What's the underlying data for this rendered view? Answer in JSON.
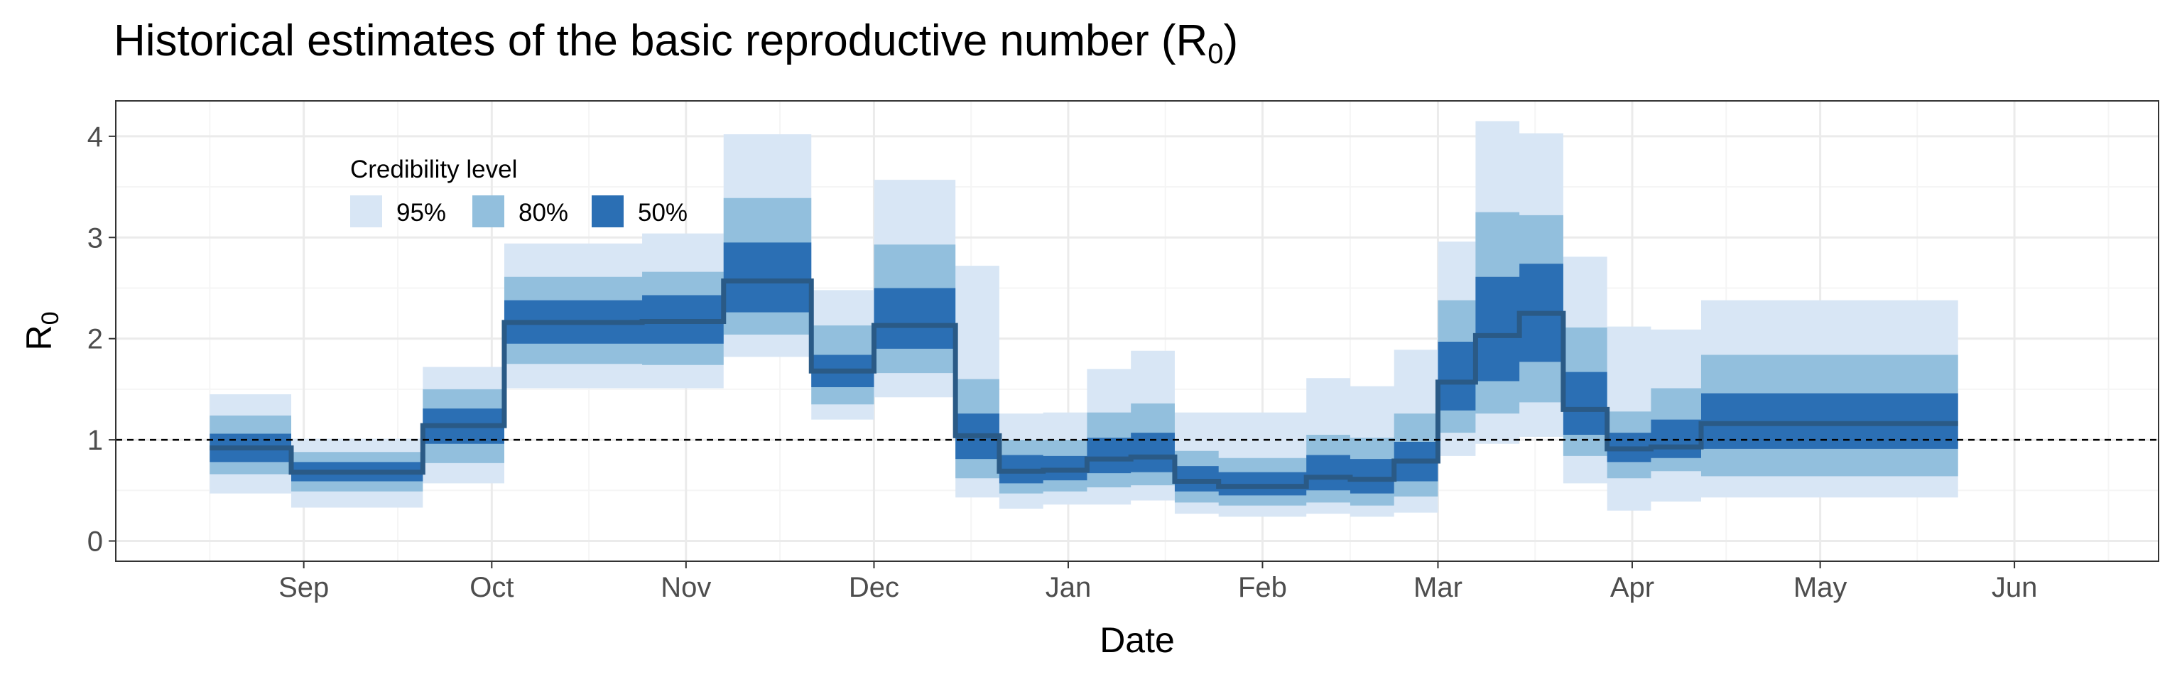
{
  "chart_data": {
    "type": "area",
    "title": "Historical estimates of the basic reproductive number (R",
    "title_subscript": "0",
    "title_suffix": ")",
    "xlabel": "Date",
    "ylabel": "R",
    "ylabel_subscript": "0",
    "x_ticks": [
      "Sep",
      "Oct",
      "Nov",
      "Dec",
      "Jan",
      "Feb",
      "Mar",
      "Apr",
      "May",
      "Jun"
    ],
    "x_tick_dates": [
      "2020-09-01",
      "2020-10-01",
      "2020-11-01",
      "2020-12-01",
      "2021-01-01",
      "2021-02-01",
      "2021-03-01",
      "2021-04-01",
      "2021-05-01",
      "2021-06-01"
    ],
    "xlim": [
      "2020-08-02",
      "2021-06-24"
    ],
    "y_ticks": [
      "0",
      "1",
      "2",
      "3",
      "4"
    ],
    "ylim": [
      -0.2,
      4.35
    ],
    "grid": true,
    "reference_line": {
      "y": 1,
      "style": "dashed"
    },
    "legend": {
      "title": "Credibility level",
      "position": "top-left",
      "entries": [
        {
          "label": "95%",
          "color": "#d8e6f5"
        },
        {
          "label": "80%",
          "color": "#92bfdd"
        },
        {
          "label": "50%",
          "color": "#2b6fb4"
        }
      ]
    },
    "colors": {
      "median": "#2a5a86",
      "panel_border": "#333333",
      "grid_major": "#ebebeb",
      "grid_minor": "#f5f5f5"
    },
    "segments": [
      {
        "start": "2020-08-17",
        "end": "2020-08-30",
        "median": 0.92,
        "lo50": 0.78,
        "hi50": 1.06,
        "lo80": 0.66,
        "hi80": 1.24,
        "lo95": 0.47,
        "hi95": 1.45
      },
      {
        "start": "2020-08-30",
        "end": "2020-09-20",
        "median": 0.68,
        "lo50": 0.59,
        "hi50": 0.78,
        "lo80": 0.49,
        "hi80": 0.88,
        "lo95": 0.33,
        "hi95": 1.01
      },
      {
        "start": "2020-09-20",
        "end": "2020-10-03",
        "median": 1.14,
        "lo50": 0.96,
        "hi50": 1.31,
        "lo80": 0.77,
        "hi80": 1.5,
        "lo95": 0.57,
        "hi95": 1.72
      },
      {
        "start": "2020-10-03",
        "end": "2020-10-25",
        "median": 2.16,
        "lo50": 1.95,
        "hi50": 2.38,
        "lo80": 1.75,
        "hi80": 2.61,
        "lo95": 1.51,
        "hi95": 2.94
      },
      {
        "start": "2020-10-25",
        "end": "2020-11-07",
        "median": 2.17,
        "lo50": 1.95,
        "hi50": 2.43,
        "lo80": 1.74,
        "hi80": 2.66,
        "lo95": 1.51,
        "hi95": 3.04
      },
      {
        "start": "2020-11-07",
        "end": "2020-11-21",
        "median": 2.57,
        "lo50": 2.26,
        "hi50": 2.95,
        "lo80": 2.04,
        "hi80": 3.39,
        "lo95": 1.82,
        "hi95": 4.02
      },
      {
        "start": "2020-11-21",
        "end": "2020-12-01",
        "median": 1.68,
        "lo50": 1.52,
        "hi50": 1.84,
        "lo80": 1.35,
        "hi80": 2.13,
        "lo95": 1.2,
        "hi95": 2.48
      },
      {
        "start": "2020-12-01",
        "end": "2020-12-14",
        "median": 2.13,
        "lo50": 1.9,
        "hi50": 2.5,
        "lo80": 1.66,
        "hi80": 2.93,
        "lo95": 1.42,
        "hi95": 3.57
      },
      {
        "start": "2020-12-14",
        "end": "2020-12-21",
        "median": 1.04,
        "lo50": 0.81,
        "hi50": 1.26,
        "lo80": 0.62,
        "hi80": 1.6,
        "lo95": 0.43,
        "hi95": 2.72
      },
      {
        "start": "2020-12-21",
        "end": "2020-12-28",
        "median": 0.69,
        "lo50": 0.57,
        "hi50": 0.85,
        "lo80": 0.47,
        "hi80": 1.0,
        "lo95": 0.32,
        "hi95": 1.26
      },
      {
        "start": "2020-12-28",
        "end": "2021-01-04",
        "median": 0.7,
        "lo50": 0.6,
        "hi50": 0.84,
        "lo80": 0.49,
        "hi80": 1.0,
        "lo95": 0.36,
        "hi95": 1.27
      },
      {
        "start": "2021-01-04",
        "end": "2021-01-11",
        "median": 0.81,
        "lo50": 0.67,
        "hi50": 1.02,
        "lo80": 0.53,
        "hi80": 1.27,
        "lo95": 0.36,
        "hi95": 1.7
      },
      {
        "start": "2021-01-11",
        "end": "2021-01-18",
        "median": 0.83,
        "lo50": 0.68,
        "hi50": 1.07,
        "lo80": 0.55,
        "hi80": 1.36,
        "lo95": 0.4,
        "hi95": 1.88
      },
      {
        "start": "2021-01-18",
        "end": "2021-01-25",
        "median": 0.59,
        "lo50": 0.49,
        "hi50": 0.74,
        "lo80": 0.38,
        "hi80": 0.89,
        "lo95": 0.27,
        "hi95": 1.27
      },
      {
        "start": "2021-01-25",
        "end": "2021-02-08",
        "median": 0.54,
        "lo50": 0.45,
        "hi50": 0.68,
        "lo80": 0.35,
        "hi80": 0.82,
        "lo95": 0.24,
        "hi95": 1.27
      },
      {
        "start": "2021-02-08",
        "end": "2021-02-15",
        "median": 0.63,
        "lo50": 0.5,
        "hi50": 0.85,
        "lo80": 0.38,
        "hi80": 1.05,
        "lo95": 0.27,
        "hi95": 1.61
      },
      {
        "start": "2021-02-15",
        "end": "2021-02-22",
        "median": 0.61,
        "lo50": 0.47,
        "hi50": 0.81,
        "lo80": 0.35,
        "hi80": 1.02,
        "lo95": 0.24,
        "hi95": 1.53
      },
      {
        "start": "2021-02-22",
        "end": "2021-03-01",
        "median": 0.79,
        "lo50": 0.59,
        "hi50": 0.98,
        "lo80": 0.44,
        "hi80": 1.26,
        "lo95": 0.28,
        "hi95": 1.89
      },
      {
        "start": "2021-03-01",
        "end": "2021-03-07",
        "median": 1.57,
        "lo50": 1.29,
        "hi50": 1.97,
        "lo80": 1.07,
        "hi80": 2.38,
        "lo95": 0.84,
        "hi95": 2.96
      },
      {
        "start": "2021-03-07",
        "end": "2021-03-14",
        "median": 2.03,
        "lo50": 1.58,
        "hi50": 2.61,
        "lo80": 1.26,
        "hi80": 3.25,
        "lo95": 0.96,
        "hi95": 4.15
      },
      {
        "start": "2021-03-14",
        "end": "2021-03-21",
        "median": 2.25,
        "lo50": 1.77,
        "hi50": 2.74,
        "lo80": 1.37,
        "hi80": 3.22,
        "lo95": 1.03,
        "hi95": 4.03
      },
      {
        "start": "2021-03-21",
        "end": "2021-03-28",
        "median": 1.3,
        "lo50": 1.05,
        "hi50": 1.67,
        "lo80": 0.84,
        "hi80": 2.11,
        "lo95": 0.57,
        "hi95": 2.81
      },
      {
        "start": "2021-03-28",
        "end": "2021-04-04",
        "median": 0.91,
        "lo50": 0.78,
        "hi50": 1.07,
        "lo80": 0.62,
        "hi80": 1.28,
        "lo95": 0.3,
        "hi95": 2.12
      },
      {
        "start": "2021-04-04",
        "end": "2021-04-12",
        "median": 0.93,
        "lo50": 0.82,
        "hi50": 1.2,
        "lo80": 0.69,
        "hi80": 1.51,
        "lo95": 0.39,
        "hi95": 2.09
      },
      {
        "start": "2021-04-12",
        "end": "2021-05-23",
        "median": 1.16,
        "lo50": 0.91,
        "hi50": 1.46,
        "lo80": 0.64,
        "hi80": 1.84,
        "lo95": 0.43,
        "hi95": 2.38
      }
    ]
  }
}
